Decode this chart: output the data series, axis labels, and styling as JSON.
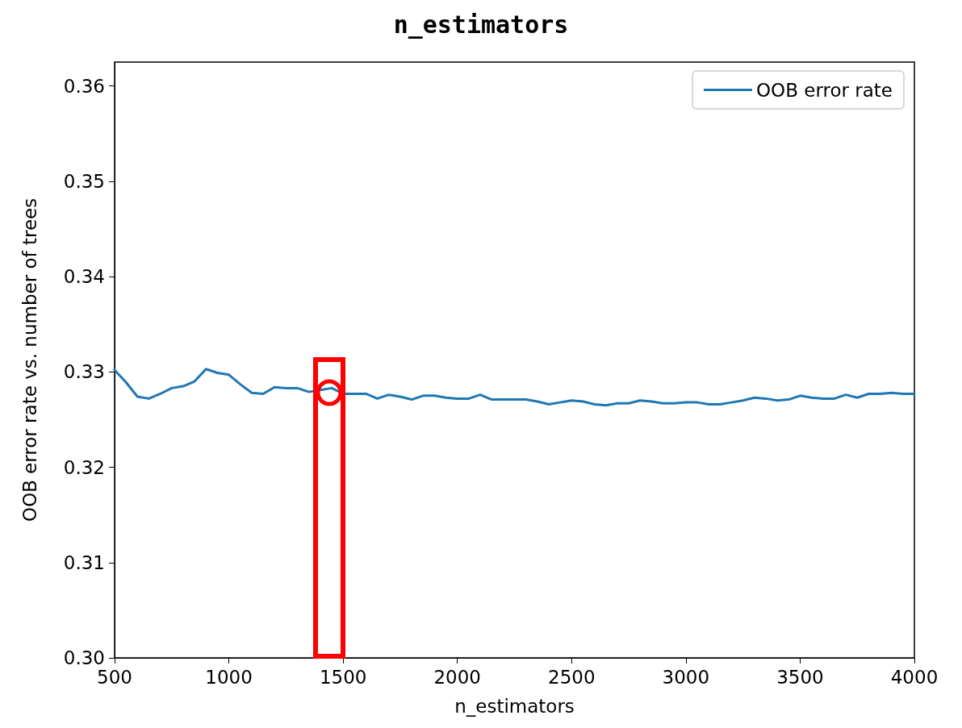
{
  "chart_data": {
    "type": "line",
    "title": "n_estimators",
    "xlabel": "n_estimators",
    "ylabel": "OOB error rate vs. number of trees",
    "x": [
      500,
      550,
      600,
      650,
      700,
      750,
      800,
      850,
      900,
      950,
      1000,
      1050,
      1100,
      1150,
      1200,
      1250,
      1300,
      1350,
      1400,
      1450,
      1500,
      1550,
      1600,
      1650,
      1700,
      1750,
      1800,
      1850,
      1900,
      1950,
      2000,
      2050,
      2100,
      2150,
      2200,
      2250,
      2300,
      2350,
      2400,
      2450,
      2500,
      2550,
      2600,
      2650,
      2700,
      2750,
      2800,
      2850,
      2900,
      2950,
      3000,
      3050,
      3100,
      3150,
      3200,
      3250,
      3300,
      3350,
      3400,
      3450,
      3500,
      3550,
      3600,
      3650,
      3700,
      3750,
      3800,
      3850,
      3900,
      3950,
      4000
    ],
    "series": [
      {
        "name": "OOB error rate",
        "color": "#1f77b4",
        "values": [
          0.3302,
          0.3289,
          0.3274,
          0.3272,
          0.3277,
          0.3283,
          0.3285,
          0.329,
          0.3303,
          0.3299,
          0.3297,
          0.3287,
          0.3278,
          0.3277,
          0.3284,
          0.3283,
          0.3283,
          0.3279,
          0.3281,
          0.3283,
          0.3277,
          0.3277,
          0.3277,
          0.3272,
          0.3276,
          0.3274,
          0.3271,
          0.3275,
          0.3275,
          0.3273,
          0.3272,
          0.3272,
          0.3276,
          0.3271,
          0.3271,
          0.3271,
          0.3271,
          0.3269,
          0.3266,
          0.3268,
          0.327,
          0.3269,
          0.3266,
          0.3265,
          0.3267,
          0.3267,
          0.327,
          0.3269,
          0.3267,
          0.3267,
          0.3268,
          0.3268,
          0.3266,
          0.3266,
          0.3268,
          0.327,
          0.3273,
          0.3272,
          0.327,
          0.3271,
          0.3275,
          0.3273,
          0.3272,
          0.3272,
          0.3276,
          0.3273,
          0.3277,
          0.3277,
          0.3278,
          0.3277,
          0.3277
        ]
      }
    ],
    "xlim": [
      500,
      4000
    ],
    "xticks": [
      500,
      1000,
      1500,
      2000,
      2500,
      3000,
      3500,
      4000
    ],
    "ylim": [
      0.3,
      0.3625
    ],
    "yticks": [
      {
        "value": 0.3,
        "label": "0.30"
      },
      {
        "value": 0.31,
        "label": "0.31"
      },
      {
        "value": 0.32,
        "label": "0.32"
      },
      {
        "value": 0.33,
        "label": "0.33"
      },
      {
        "value": 0.34,
        "label": "0.34"
      },
      {
        "value": 0.35,
        "label": "0.35"
      },
      {
        "value": 0.36,
        "label": "0.36"
      }
    ],
    "grid": false,
    "legend": "top right",
    "marker": "none",
    "line_style": "solid"
  }
}
